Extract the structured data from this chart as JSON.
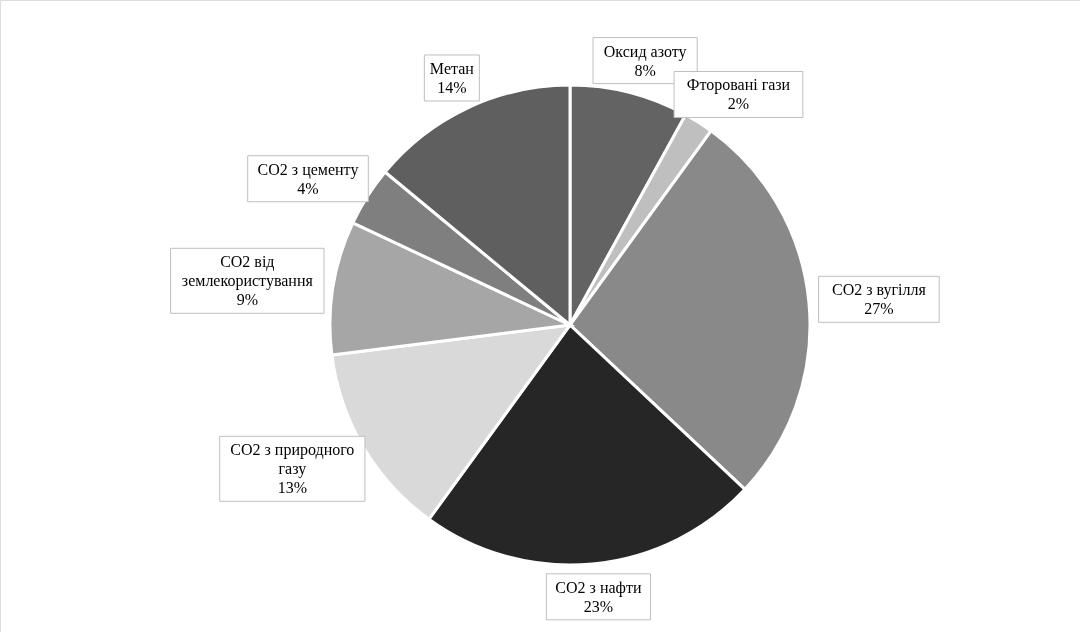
{
  "chart_data": {
    "type": "pie",
    "categories": [
      "Оксид азоту",
      "Фторовані гази",
      "CO2 з вугілля",
      "CO2 з нафти",
      "CO2 з природного газу",
      "CO2 від землекористування",
      "CO2 з цементу",
      "Метан"
    ],
    "values": [
      8,
      2,
      27,
      23,
      13,
      9,
      4,
      14
    ],
    "value_labels": [
      "8%",
      "2%",
      "27%",
      "23%",
      "13%",
      "9%",
      "4%",
      "14%"
    ],
    "colors": [
      "#636363",
      "#bfbfbf",
      "#898989",
      "#262626",
      "#d9d9d9",
      "#a6a6a6",
      "#7f7f7f",
      "#5f5f5f"
    ]
  }
}
